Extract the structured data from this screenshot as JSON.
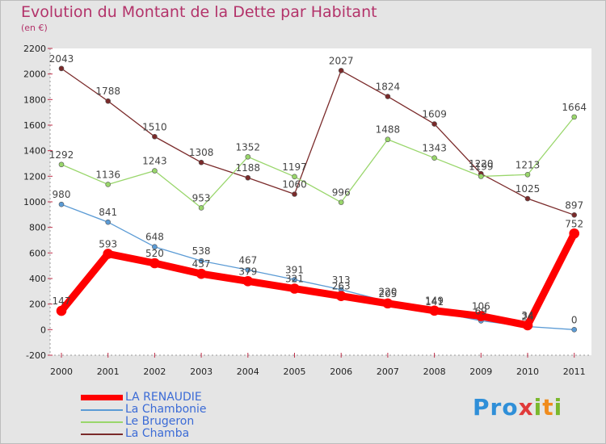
{
  "header": {
    "title": "Evolution du Montant de la Dette par Habitant",
    "subtitle": "(en €)"
  },
  "chart_data": {
    "type": "line",
    "title": "Evolution du Montant de la Dette par Habitant",
    "ylabel": "(en €)",
    "categories": [
      "2000",
      "2001",
      "2002",
      "2003",
      "2004",
      "2005",
      "2006",
      "2007",
      "2008",
      "2009",
      "2010",
      "2011"
    ],
    "ylim": [
      -200,
      2200
    ],
    "yticks": [
      -200,
      0,
      200,
      400,
      600,
      800,
      1000,
      1200,
      1400,
      1600,
      1800,
      2000,
      2200
    ],
    "grid": false,
    "legend": "bottom-left",
    "series": [
      {
        "name": "LA RENAUDIE",
        "color": "#ff0000",
        "values": [
          147,
          593,
          520,
          437,
          379,
          321,
          263,
          205,
          149,
          106,
          34,
          752
        ]
      },
      {
        "name": "La Chambonie",
        "color": "#5b9bd5",
        "values": [
          980,
          841,
          648,
          538,
          467,
          391,
          313,
          220,
          141,
          69,
          24,
          0
        ]
      },
      {
        "name": "Le Brugeron",
        "color": "#99d66b",
        "values": [
          1292,
          1136,
          1243,
          953,
          1352,
          1197,
          996,
          1488,
          1343,
          1199,
          1213,
          1664
        ]
      },
      {
        "name": "La Chamba",
        "color": "#7a2a2a",
        "values": [
          2043,
          1788,
          1510,
          1308,
          1188,
          1060,
          2027,
          1824,
          1609,
          1220,
          1025,
          897
        ]
      }
    ]
  },
  "logo": {
    "p1": "Pro",
    "p2": "x",
    "p3": "i",
    "p4": "t",
    "p5": "i"
  }
}
